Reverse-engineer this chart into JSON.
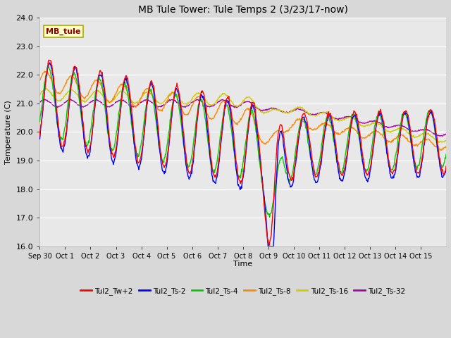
{
  "title": "MB Tule Tower: Tule Temps 2 (3/23/17-now)",
  "ylabel": "Temperature (C)",
  "xlabel": "Time",
  "xlim_labels": [
    "Sep 30",
    "Oct 1",
    "Oct 2",
    "Oct 3",
    "Oct 4",
    "Oct 5",
    "Oct 6",
    "Oct 7",
    "Oct 8",
    "Oct 9",
    "Oct 10",
    "Oct 11",
    "Oct 12",
    "Oct 13",
    "Oct 14",
    "Oct 15"
  ],
  "ylim": [
    16.0,
    24.0
  ],
  "yticks": [
    16.0,
    17.0,
    18.0,
    19.0,
    20.0,
    21.0,
    22.0,
    23.0,
    24.0
  ],
  "bg_color": "#e8e8e8",
  "grid_color": "#ffffff",
  "series_colors": {
    "Tul2_Tw+2": "#ff0000",
    "Tul2_Ts-2": "#0000ff",
    "Tul2_Ts-4": "#00cc00",
    "Tul2_Ts-8": "#ff8800",
    "Tul2_Ts-16": "#cccc00",
    "Tul2_Ts-32": "#aa00aa"
  },
  "legend_label": "MB_tule",
  "legend_bg": "#ffffcc",
  "legend_border": "#aaaa00",
  "fig_width": 6.4,
  "fig_height": 4.8,
  "dpi": 100
}
